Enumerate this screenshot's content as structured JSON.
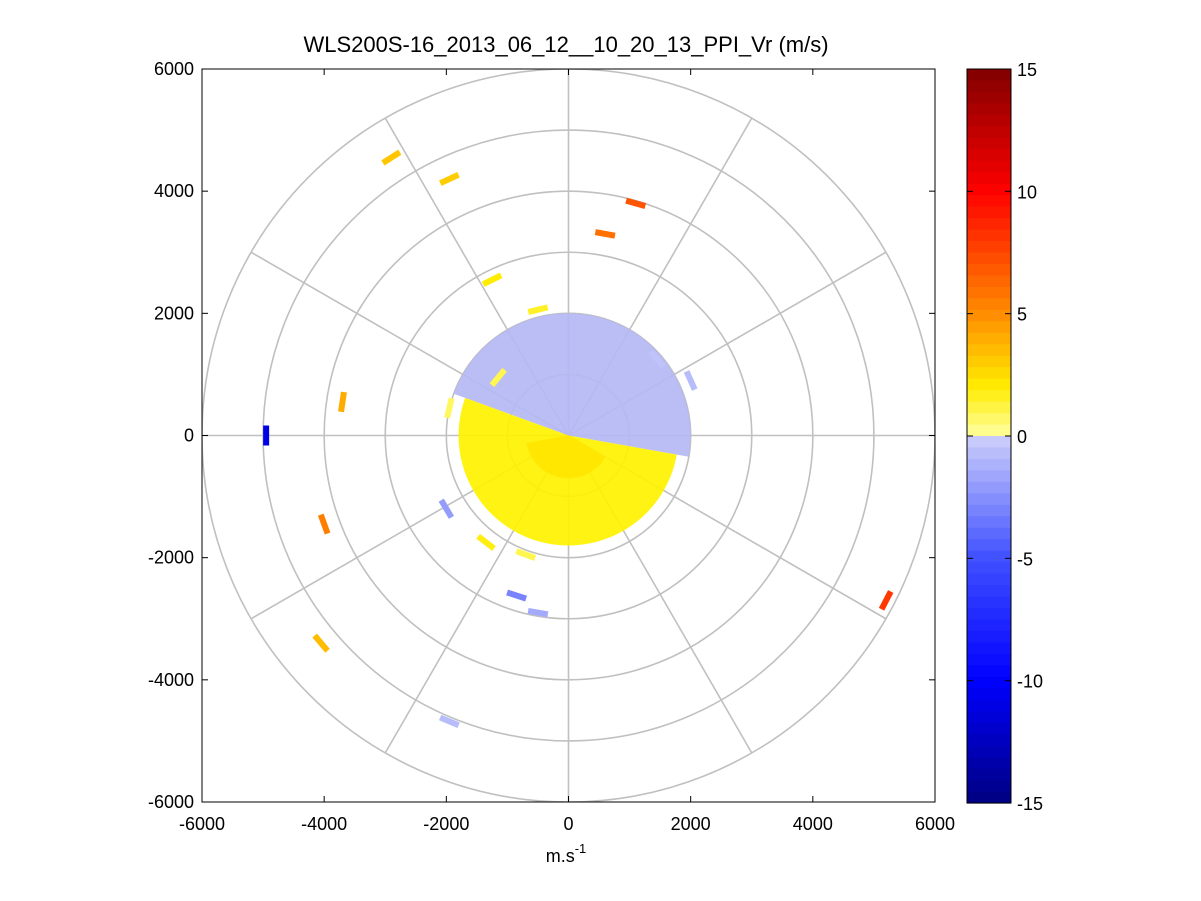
{
  "chart_data": {
    "type": "ppi-polar-scatter",
    "title": "WLS200S-16_2013_06_12__10_20_13_PPI_Vr (m/s)",
    "xlabel": {
      "base": "m.s",
      "exponent": "-1"
    },
    "ylabel": "",
    "xlim": [
      -6000,
      6000
    ],
    "ylim": [
      -6000,
      6000
    ],
    "x_ticks": [
      -6000,
      -4000,
      -2000,
      0,
      2000,
      4000,
      6000
    ],
    "y_ticks": [
      6000,
      4000,
      2000,
      0,
      -2000,
      -4000,
      -6000
    ],
    "x_tick_labels": [
      "-6000",
      "-4000",
      "-2000",
      "0",
      "2000",
      "4000",
      "6000"
    ],
    "y_tick_labels": [
      "6000",
      "4000",
      "2000",
      "0",
      "-2000",
      "-4000",
      "-6000"
    ],
    "polar_grid": {
      "ring_radii": [
        1000,
        2000,
        3000,
        4000,
        5000,
        6000
      ],
      "spoke_angles_deg": [
        0,
        30,
        60,
        90,
        120,
        150,
        180,
        210,
        240,
        270,
        300,
        330
      ]
    },
    "colorbar": {
      "range": [
        -15,
        15
      ],
      "ticks": [
        15,
        10,
        5,
        0,
        -5,
        -10,
        -15
      ],
      "tick_labels": [
        "15",
        "10",
        "5",
        "0",
        "-5",
        "-10",
        "-15"
      ]
    },
    "near_field": [
      {
        "name": "approaching (negative Vr)",
        "range_m": [
          0,
          2000
        ],
        "azimuth_deg": [
          -10,
          160
        ],
        "approx_vr": -1.0,
        "color": "#b4b8f4"
      },
      {
        "name": "receding (positive Vr)",
        "range_m": [
          0,
          1800
        ],
        "azimuth_deg": [
          160,
          350
        ],
        "approx_vr": 1.0,
        "color": "#fff200"
      },
      {
        "name": "near-center core",
        "range_m": [
          0,
          700
        ],
        "azimuth_deg": [
          190,
          330
        ],
        "approx_vr": 1.5,
        "color": "#ffe600"
      }
    ],
    "isolated_echoes": [
      {
        "x": -2900,
        "y": 4550,
        "vr": 3.2
      },
      {
        "x": -1950,
        "y": 4200,
        "vr": 3.0
      },
      {
        "x": -1250,
        "y": 2550,
        "vr": 2.0
      },
      {
        "x": -500,
        "y": 2060,
        "vr": 1.5
      },
      {
        "x": 1100,
        "y": 3800,
        "vr": 7.0
      },
      {
        "x": 600,
        "y": 3300,
        "vr": 6.0
      },
      {
        "x": -3700,
        "y": 550,
        "vr": 4.0
      },
      {
        "x": -4950,
        "y": 0,
        "vr": -11.0
      },
      {
        "x": -4000,
        "y": -1450,
        "vr": 5.5
      },
      {
        "x": -4050,
        "y": -3400,
        "vr": 3.5
      },
      {
        "x": 5200,
        "y": -2700,
        "vr": 8.0
      },
      {
        "x": -850,
        "y": -2620,
        "vr": -3.0
      },
      {
        "x": -500,
        "y": -2900,
        "vr": -1.5
      },
      {
        "x": -1950,
        "y": -4680,
        "vr": -0.8
      },
      {
        "x": -2000,
        "y": -1200,
        "vr": -2.0
      },
      {
        "x": -1350,
        "y": -1750,
        "vr": 1.8
      },
      {
        "x": -700,
        "y": -1950,
        "vr": 1.0
      },
      {
        "x": -1150,
        "y": 950,
        "vr": 1.0
      },
      {
        "x": -1950,
        "y": 450,
        "vr": 0.8
      },
      {
        "x": 2000,
        "y": 900,
        "vr": -0.8
      },
      {
        "x": 1450,
        "y": 1250,
        "vr": -0.5
      }
    ]
  }
}
